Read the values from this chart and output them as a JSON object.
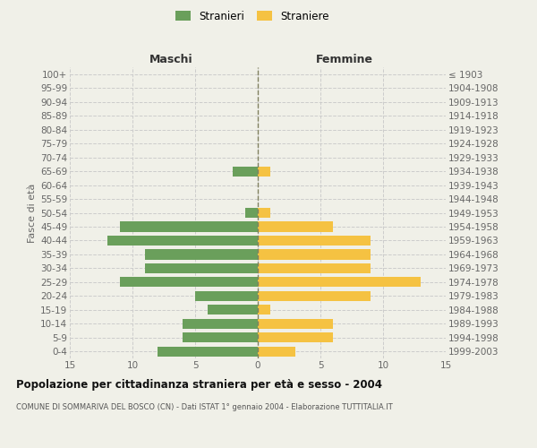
{
  "age_groups": [
    "100+",
    "95-99",
    "90-94",
    "85-89",
    "80-84",
    "75-79",
    "70-74",
    "65-69",
    "60-64",
    "55-59",
    "50-54",
    "45-49",
    "40-44",
    "35-39",
    "30-34",
    "25-29",
    "20-24",
    "15-19",
    "10-14",
    "5-9",
    "0-4"
  ],
  "birth_years": [
    "≤ 1903",
    "1904-1908",
    "1909-1913",
    "1914-1918",
    "1919-1923",
    "1924-1928",
    "1929-1933",
    "1934-1938",
    "1939-1943",
    "1944-1948",
    "1949-1953",
    "1954-1958",
    "1959-1963",
    "1964-1968",
    "1969-1973",
    "1974-1978",
    "1979-1983",
    "1984-1988",
    "1989-1993",
    "1994-1998",
    "1999-2003"
  ],
  "males": [
    0,
    0,
    0,
    0,
    0,
    0,
    0,
    2,
    0,
    0,
    1,
    11,
    12,
    9,
    9,
    11,
    5,
    4,
    6,
    6,
    8
  ],
  "females": [
    0,
    0,
    0,
    0,
    0,
    0,
    0,
    1,
    0,
    0,
    1,
    6,
    9,
    9,
    9,
    13,
    9,
    1,
    6,
    6,
    3
  ],
  "male_color": "#6a9f5b",
  "female_color": "#f5c242",
  "bg_color": "#f0f0e8",
  "grid_color": "#cccccc",
  "center_line_color": "#808060",
  "title": "Popolazione per cittadinanza straniera per età e sesso - 2004",
  "subtitle": "COMUNE DI SOMMARIVA DEL BOSCO (CN) - Dati ISTAT 1° gennaio 2004 - Elaborazione TUTTITALIA.IT",
  "legend_stranieri": "Stranieri",
  "legend_straniere": "Straniere",
  "label_maschi": "Maschi",
  "label_femmine": "Femmine",
  "ylabel_left": "Fasce di età",
  "xlim": 15
}
